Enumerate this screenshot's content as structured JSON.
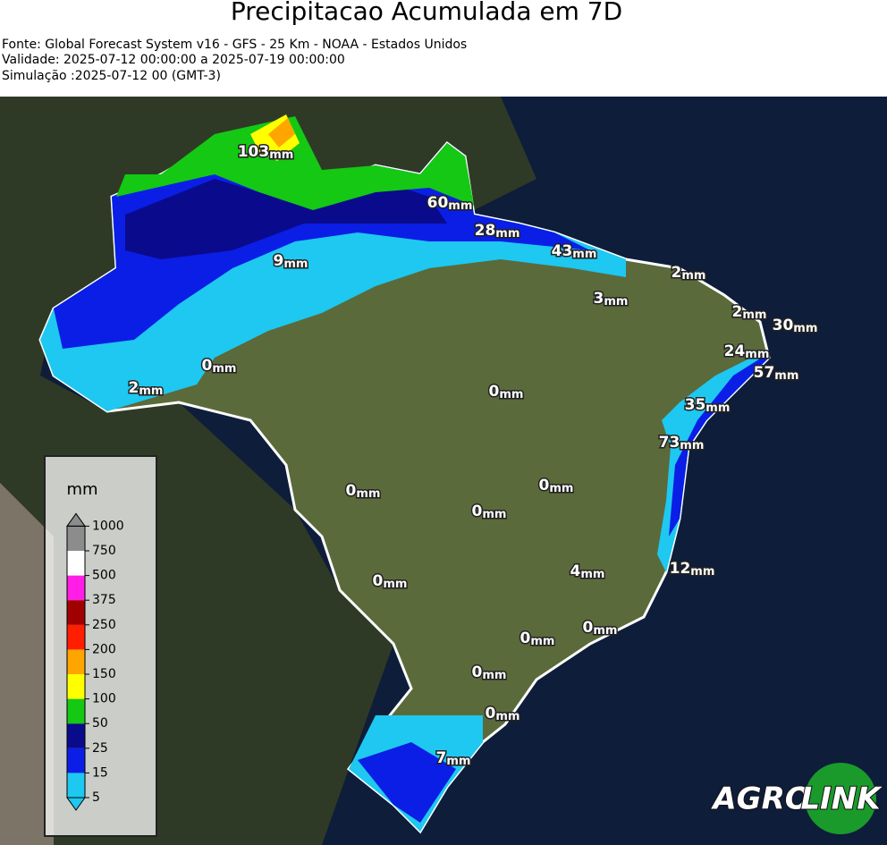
{
  "header": {
    "title": "Precipitacao Acumulada em 7D",
    "lines": [
      "Fonte: Global Forecast System v16 - GFS - 25 Km - NOAA - Estados Unidos",
      "Validade: 2025-07-12 00:00:00 a 2025-07-19 00:00:00",
      "Simulação :2025-07-12 00 (GMT-3)"
    ]
  },
  "map": {
    "unit": "mm",
    "labels": [
      103,
      60,
      28,
      43,
      2,
      9,
      3,
      2,
      30,
      24,
      57,
      35,
      0,
      2,
      0,
      73,
      0,
      0,
      0,
      4,
      12,
      0,
      0,
      0,
      0,
      0,
      7
    ]
  },
  "legend": {
    "title": "mm",
    "ticks": [
      5,
      15,
      25,
      50,
      100,
      150,
      200,
      250,
      375,
      500,
      750,
      1000
    ],
    "colors": [
      "#1ec8f0",
      "#0a1ee6",
      "#0a0a8c",
      "#14c814",
      "#ffff00",
      "#ffa500",
      "#ff1e00",
      "#a00000",
      "#ff1ee6",
      "#ffffff",
      "#8c8c8c"
    ]
  },
  "logo": {
    "left": "AGRO",
    "right": "LINK"
  }
}
